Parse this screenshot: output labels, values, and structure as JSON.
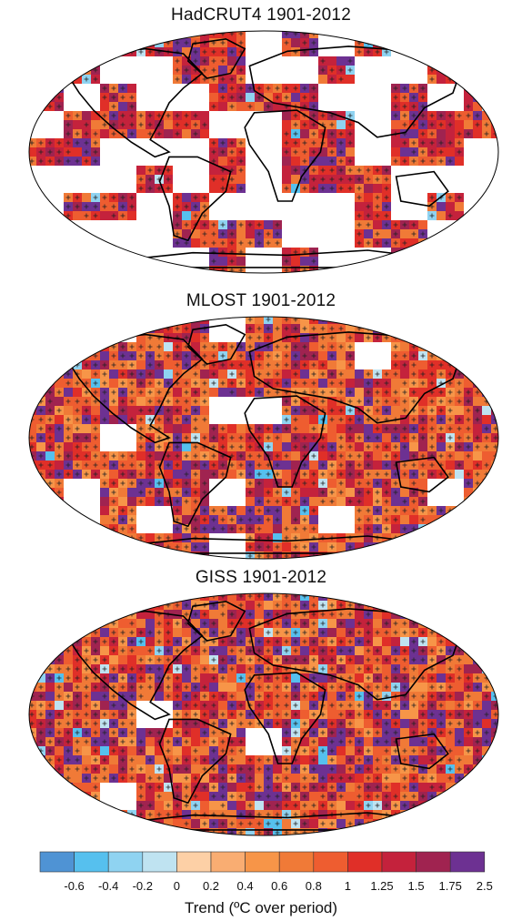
{
  "panels": [
    {
      "title": "HadCRUT4 1901-2012",
      "coverage": 0.45,
      "dominant_color": "#d2322d"
    },
    {
      "title": "MLOST 1901-2012",
      "coverage": 0.86,
      "dominant_color": "#ee6428"
    },
    {
      "title": "GISS 1901-2012",
      "coverage": 0.99,
      "dominant_color": "#ee6428"
    }
  ],
  "legend": {
    "label": "Trend (ºC over period)",
    "ticks": [
      "-0.6",
      "-0.4",
      "-0.2",
      "0",
      "0.2",
      "0.4",
      "0.6",
      "0.8",
      "1",
      "1.25",
      "1.5",
      "1.75",
      "2.5"
    ],
    "colors": [
      "#4f93d4",
      "#56c0ee",
      "#8fd3f1",
      "#bfe3f1",
      "#fdd0a6",
      "#f9ad72",
      "#f79548",
      "#f07a37",
      "#ee5d30",
      "#e02f28",
      "#c4223c",
      "#a02350",
      "#6d3192"
    ]
  },
  "stipple_note": "+",
  "map": {
    "land_outline": "#000000",
    "no_data": "#ffffff"
  }
}
